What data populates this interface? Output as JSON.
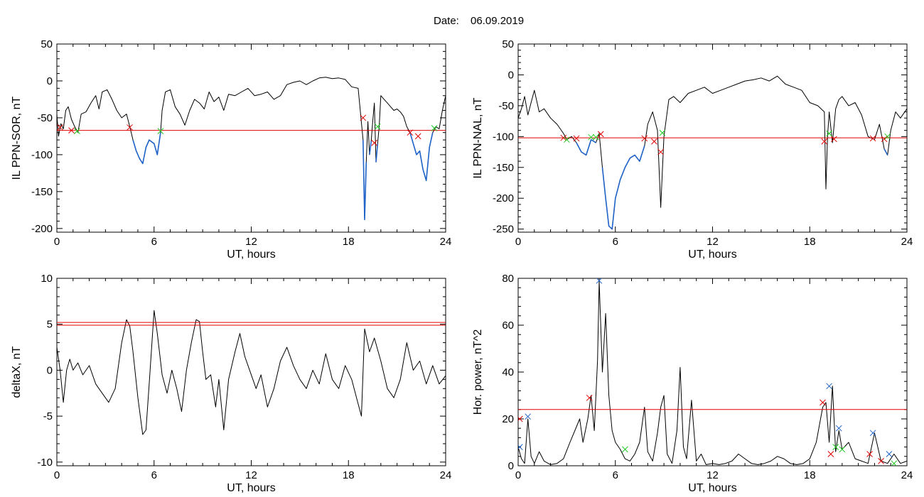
{
  "figure": {
    "title_label": "Date:",
    "title_value": "06.09.2019"
  },
  "colors": {
    "axis": "#000000",
    "curve": "#000000",
    "highlight": "#1f63c8",
    "threshold": "#e00000",
    "marker_red": "#e00000",
    "marker_green": "#22cc22",
    "marker_blue": "#1f63c8"
  },
  "chart_data": [
    {
      "id": "p1",
      "type": "line",
      "xlabel": "UT, hours",
      "ylabel": "IL PPN-SOR, nT",
      "xlim": [
        0,
        24
      ],
      "ylim": [
        -205,
        50
      ],
      "xticks": [
        0,
        6,
        12,
        18,
        24
      ],
      "yticks": [
        50,
        0,
        -50,
        -100,
        -150,
        -200
      ],
      "threshold": -67,
      "series": [
        {
          "x": [
            0,
            0.1,
            0.25,
            0.4,
            0.55,
            0.7,
            0.9,
            1.1,
            1.3,
            1.5,
            1.8,
            2.1,
            2.4,
            2.6,
            2.8,
            3.1,
            3.4,
            3.7,
            4.0,
            4.3,
            4.5,
            4.7,
            4.9,
            5.1,
            5.3,
            5.5,
            5.7,
            6.0,
            6.2,
            6.4,
            6.5,
            6.7,
            7.0,
            7.3,
            7.6,
            7.9,
            8.2,
            8.5,
            8.8,
            9.1,
            9.4,
            9.7,
            10.0,
            10.3,
            10.6,
            11.0,
            11.4,
            11.8,
            12.2,
            12.6,
            13.0,
            13.4,
            13.8,
            14.2,
            14.6,
            15.0,
            15.4,
            15.8,
            16.2,
            16.6,
            17.0,
            17.4,
            17.8,
            18.2,
            18.6,
            18.9,
            19.0,
            19.1,
            19.2,
            19.3,
            19.4,
            19.5,
            19.6,
            19.7,
            19.8,
            19.9,
            20.0,
            20.2,
            20.4,
            20.6,
            20.8,
            21.0,
            21.2,
            21.4,
            21.6,
            21.8,
            22.0,
            22.2,
            22.4,
            22.6,
            22.8,
            23.0,
            23.2,
            23.4,
            23.6,
            23.8,
            24.0
          ],
          "y": [
            -45,
            -75,
            -58,
            -65,
            -40,
            -35,
            -52,
            -62,
            -70,
            -45,
            -42,
            -30,
            -20,
            -38,
            -15,
            -12,
            -25,
            -40,
            -50,
            -45,
            -62,
            -80,
            -95,
            -105,
            -112,
            -90,
            -80,
            -85,
            -100,
            -70,
            -40,
            -15,
            -12,
            -35,
            -45,
            -60,
            -40,
            -25,
            -30,
            -38,
            -15,
            -28,
            -22,
            -40,
            -18,
            -20,
            -15,
            -10,
            -20,
            -18,
            -15,
            -25,
            -20,
            -5,
            -2,
            0,
            -5,
            0,
            4,
            5,
            3,
            4,
            2,
            -8,
            -10,
            -80,
            -188,
            -110,
            -55,
            -100,
            -82,
            -55,
            -30,
            -110,
            -85,
            -60,
            -20,
            -25,
            -30,
            -35,
            -40,
            -38,
            -42,
            -48,
            -62,
            -70,
            -85,
            -100,
            -95,
            -120,
            -135,
            -90,
            -70,
            -62,
            -65,
            -40,
            -20
          ]
        }
      ],
      "markers": [
        {
          "x": 0.2,
          "y": -63,
          "color": "red"
        },
        {
          "x": 0.9,
          "y": -67,
          "color": "red"
        },
        {
          "x": 1.25,
          "y": -68,
          "color": "green"
        },
        {
          "x": 4.5,
          "y": -63,
          "color": "red"
        },
        {
          "x": 6.4,
          "y": -68,
          "color": "green"
        },
        {
          "x": 18.9,
          "y": -50,
          "color": "red"
        },
        {
          "x": 19.6,
          "y": -84,
          "color": "red"
        },
        {
          "x": 19.8,
          "y": -62,
          "color": "green"
        },
        {
          "x": 21.8,
          "y": -70,
          "color": "red"
        },
        {
          "x": 22.3,
          "y": -75,
          "color": "red"
        },
        {
          "x": 23.3,
          "y": -64,
          "color": "green"
        }
      ]
    },
    {
      "id": "p2",
      "type": "line",
      "xlabel": "UT, hours",
      "ylabel": "IL PPN-NAL, nT",
      "xlim": [
        0,
        24
      ],
      "ylim": [
        -255,
        50
      ],
      "xticks": [
        0,
        6,
        12,
        18,
        24
      ],
      "yticks": [
        50,
        0,
        -50,
        -100,
        -150,
        -200,
        -250
      ],
      "threshold": -102,
      "series": [
        {
          "x": [
            0,
            0.2,
            0.4,
            0.6,
            0.8,
            1.0,
            1.3,
            1.6,
            2.0,
            2.4,
            2.8,
            3.0,
            3.3,
            3.6,
            3.9,
            4.2,
            4.5,
            4.8,
            5.0,
            5.2,
            5.4,
            5.6,
            5.8,
            6.0,
            6.3,
            6.6,
            6.9,
            7.2,
            7.5,
            7.8,
            8.0,
            8.3,
            8.6,
            8.8,
            9.0,
            9.3,
            9.6,
            10.0,
            10.5,
            11.0,
            11.5,
            12.0,
            12.5,
            13.0,
            13.5,
            14.0,
            14.5,
            15.0,
            15.5,
            16.0,
            16.5,
            17.0,
            17.5,
            18.0,
            18.5,
            18.9,
            19.0,
            19.1,
            19.2,
            19.4,
            19.6,
            19.8,
            20.0,
            20.4,
            20.8,
            21.2,
            21.6,
            22.0,
            22.3,
            22.6,
            22.8,
            23.0,
            23.3,
            23.6,
            24.0
          ],
          "y": [
            -70,
            -55,
            -35,
            -65,
            -45,
            -25,
            -60,
            -55,
            -70,
            -80,
            -95,
            -105,
            -100,
            -110,
            -125,
            -130,
            -105,
            -110,
            -95,
            -150,
            -200,
            -245,
            -250,
            -200,
            -170,
            -150,
            -135,
            -130,
            -140,
            -115,
            -80,
            -60,
            -90,
            -215,
            -100,
            -40,
            -35,
            -45,
            -30,
            -25,
            -20,
            -30,
            -25,
            -20,
            -15,
            -10,
            -8,
            -5,
            -10,
            -2,
            -15,
            -20,
            -25,
            -45,
            -50,
            -60,
            -185,
            -100,
            -60,
            -110,
            -55,
            -40,
            -35,
            -50,
            -45,
            -65,
            -100,
            -105,
            -80,
            -120,
            -130,
            -90,
            -60,
            -70,
            -55
          ]
        }
      ],
      "markers": [
        {
          "x": 2.8,
          "y": -102,
          "color": "red"
        },
        {
          "x": 3.0,
          "y": -105,
          "color": "green"
        },
        {
          "x": 3.6,
          "y": -103,
          "color": "red"
        },
        {
          "x": 4.5,
          "y": -101,
          "color": "green"
        },
        {
          "x": 4.8,
          "y": -101,
          "color": "green"
        },
        {
          "x": 5.1,
          "y": -96,
          "color": "red"
        },
        {
          "x": 7.8,
          "y": -103,
          "color": "red"
        },
        {
          "x": 8.4,
          "y": -108,
          "color": "red"
        },
        {
          "x": 8.8,
          "y": -125,
          "color": "red"
        },
        {
          "x": 8.9,
          "y": -94,
          "color": "green"
        },
        {
          "x": 18.9,
          "y": -108,
          "color": "red"
        },
        {
          "x": 19.2,
          "y": -95,
          "color": "green"
        },
        {
          "x": 19.5,
          "y": -104,
          "color": "red"
        },
        {
          "x": 21.9,
          "y": -103,
          "color": "red"
        },
        {
          "x": 22.6,
          "y": -104,
          "color": "red"
        },
        {
          "x": 22.8,
          "y": -100,
          "color": "green"
        }
      ]
    },
    {
      "id": "p3",
      "type": "line",
      "xlabel": "UT, hours",
      "ylabel": "deltaX, nT",
      "xlim": [
        0,
        24
      ],
      "ylim": [
        -10.4,
        10
      ],
      "xticks": [
        0,
        6,
        12,
        18,
        24
      ],
      "yticks": [
        10,
        5,
        0,
        -5,
        -10
      ],
      "thresholds": [
        5.2,
        4.9
      ],
      "series": [
        {
          "x": [
            0,
            0.2,
            0.4,
            0.6,
            0.8,
            1.0,
            1.3,
            1.6,
            2.0,
            2.4,
            2.8,
            3.2,
            3.6,
            4.0,
            4.3,
            4.5,
            4.7,
            5.0,
            5.3,
            5.5,
            5.7,
            6.0,
            6.2,
            6.5,
            6.8,
            7.1,
            7.4,
            7.7,
            8.0,
            8.3,
            8.6,
            8.8,
            9.0,
            9.2,
            9.5,
            9.8,
            10.0,
            10.3,
            10.6,
            11.0,
            11.3,
            11.6,
            12.0,
            12.3,
            12.6,
            13.0,
            13.4,
            13.8,
            14.2,
            14.6,
            15.0,
            15.4,
            15.8,
            16.2,
            16.6,
            17.0,
            17.4,
            17.8,
            18.2,
            18.5,
            18.8,
            19.0,
            19.3,
            19.6,
            20.0,
            20.4,
            20.8,
            21.2,
            21.6,
            22.0,
            22.4,
            22.8,
            23.2,
            23.6,
            24.0
          ],
          "y": [
            2.5,
            0,
            -3.5,
            0,
            1.2,
            0,
            0.8,
            -0.5,
            0.5,
            -1.5,
            -2.5,
            -3.5,
            -2.0,
            3.0,
            5.5,
            4.8,
            2.0,
            -3.0,
            -7.0,
            -6.5,
            -1.5,
            6.5,
            4.0,
            -0.5,
            -2.5,
            0,
            -2.0,
            -4.5,
            0,
            3.0,
            5.5,
            5.3,
            2.0,
            -1.0,
            -0.5,
            -4.0,
            -1.0,
            -6.5,
            -1.0,
            2.0,
            4.0,
            1.5,
            -0.5,
            -2.0,
            -0.5,
            -4.0,
            -2.0,
            1.0,
            2.5,
            0.5,
            -1.0,
            -2.0,
            0,
            -1.5,
            1.8,
            -1.0,
            -2.0,
            0.5,
            -1.0,
            -3.0,
            -5.0,
            4.5,
            2.0,
            3.5,
            1.0,
            -2.0,
            -3.0,
            -1.0,
            3.0,
            0,
            1.0,
            -1.5,
            0.5,
            -1.5,
            -0.6
          ]
        }
      ]
    },
    {
      "id": "p4",
      "type": "line",
      "xlabel": "UT, hours",
      "ylabel": "Hor. power, nT^2",
      "xlim": [
        0,
        24
      ],
      "ylim": [
        0,
        80
      ],
      "xticks": [
        0,
        6,
        12,
        18,
        24
      ],
      "yticks": [
        80,
        60,
        40,
        20,
        0
      ],
      "threshold": 24,
      "series": [
        {
          "x": [
            0,
            0.2,
            0.4,
            0.6,
            0.8,
            1.0,
            1.3,
            1.6,
            2.0,
            2.4,
            2.8,
            3.2,
            3.5,
            3.8,
            4.0,
            4.3,
            4.5,
            4.7,
            4.9,
            5.0,
            5.2,
            5.4,
            5.6,
            5.8,
            6.0,
            6.3,
            6.6,
            6.9,
            7.2,
            7.5,
            7.8,
            8.0,
            8.3,
            8.6,
            8.8,
            9.0,
            9.2,
            9.5,
            9.8,
            10.0,
            10.2,
            10.4,
            10.7,
            11.0,
            11.3,
            11.6,
            12.0,
            12.4,
            12.8,
            13.2,
            13.6,
            14.0,
            14.4,
            14.8,
            15.2,
            15.6,
            16.0,
            16.4,
            16.8,
            17.2,
            17.6,
            18.0,
            18.4,
            18.8,
            19.0,
            19.2,
            19.4,
            19.6,
            19.8,
            20.0,
            20.4,
            20.8,
            21.2,
            21.6,
            22.0,
            22.4,
            22.8,
            23.2,
            23.6,
            24.0
          ],
          "y": [
            8,
            3,
            1,
            20,
            4,
            1,
            6,
            2,
            0.5,
            1,
            3,
            10,
            15,
            20,
            10,
            20,
            30,
            15,
            45,
            79,
            40,
            65,
            30,
            15,
            10,
            7,
            3,
            2,
            5,
            10,
            25,
            6,
            2,
            14,
            25,
            30,
            5,
            1,
            15,
            42,
            8,
            3,
            28,
            2,
            5,
            0.5,
            1,
            0.5,
            1,
            2,
            5,
            3,
            1,
            0.5,
            1,
            2,
            4,
            3,
            1,
            0.5,
            1,
            3,
            10,
            25,
            27,
            10,
            34,
            6,
            15,
            7,
            10,
            3,
            2,
            1,
            14,
            2,
            1,
            5,
            1,
            2
          ]
        }
      ],
      "markers": [
        {
          "x": 0.1,
          "y": 20,
          "color": "red"
        },
        {
          "x": 0.1,
          "y": 8,
          "color": "blue"
        },
        {
          "x": 0.6,
          "y": 21,
          "color": "blue"
        },
        {
          "x": 4.4,
          "y": 29,
          "color": "red"
        },
        {
          "x": 5.0,
          "y": 79,
          "color": "blue"
        },
        {
          "x": 6.6,
          "y": 7,
          "color": "green"
        },
        {
          "x": 18.8,
          "y": 27,
          "color": "red"
        },
        {
          "x": 19.2,
          "y": 34,
          "color": "blue"
        },
        {
          "x": 19.3,
          "y": 5,
          "color": "red"
        },
        {
          "x": 19.6,
          "y": 8,
          "color": "green"
        },
        {
          "x": 19.8,
          "y": 16,
          "color": "blue"
        },
        {
          "x": 20.0,
          "y": 7,
          "color": "green"
        },
        {
          "x": 21.7,
          "y": 5,
          "color": "red"
        },
        {
          "x": 21.9,
          "y": 14,
          "color": "blue"
        },
        {
          "x": 22.4,
          "y": 2,
          "color": "red"
        },
        {
          "x": 22.9,
          "y": 5,
          "color": "blue"
        },
        {
          "x": 23.2,
          "y": 1,
          "color": "green"
        }
      ]
    }
  ]
}
